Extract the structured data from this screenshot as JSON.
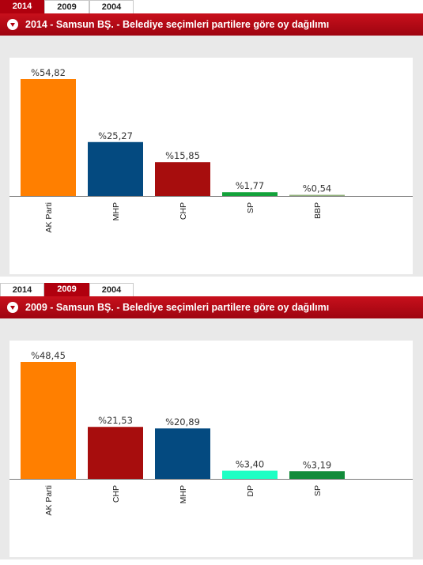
{
  "panels": [
    {
      "tabs": [
        {
          "label": "2014",
          "active": true
        },
        {
          "label": "2009",
          "active": false
        },
        {
          "label": "2004",
          "active": false
        }
      ],
      "title": "2014 - Samsun BŞ. - Belediye seçimleri partilere göre oy dağılımı",
      "icon": "down-arrow-circle-icon"
    },
    {
      "tabs": [
        {
          "label": "2014",
          "active": false
        },
        {
          "label": "2009",
          "active": true
        },
        {
          "label": "2004",
          "active": false
        }
      ],
      "title": "2009 - Samsun BŞ. - Belediye seçimleri partilere göre oy dağılımı",
      "icon": "down-arrow-circle-icon"
    }
  ],
  "chart_data": [
    {
      "type": "bar",
      "categories": [
        "AK Parti",
        "MHP",
        "CHP",
        "SP",
        "BBP"
      ],
      "values": [
        54.82,
        25.27,
        15.85,
        1.77,
        0.54
      ],
      "value_labels": [
        "%54,82",
        "%25,27",
        "%15,85",
        "%1,77",
        "%0,54"
      ],
      "colors": [
        "#ff7f00",
        "#044a80",
        "#a70d0d",
        "#12a23a",
        "#8fb07a"
      ],
      "title": "2014 - Samsun BŞ. - Belediye seçimleri partilere göre oy dağılımı",
      "xlabel": "",
      "ylabel": "",
      "ylim": [
        0,
        54.82
      ],
      "grid": false
    },
    {
      "type": "bar",
      "categories": [
        "AK Parti",
        "CHP",
        "MHP",
        "DP",
        "SP"
      ],
      "values": [
        48.45,
        21.53,
        20.89,
        3.4,
        3.19
      ],
      "value_labels": [
        "%48,45",
        "%21,53",
        "%20,89",
        "%3,40",
        "%3,19"
      ],
      "colors": [
        "#ff7f00",
        "#a70d0d",
        "#044a80",
        "#1effc4",
        "#128b3a"
      ],
      "title": "2009 - Samsun BŞ. - Belediye seçimleri partilere göre oy dağılımı",
      "xlabel": "",
      "ylabel": "",
      "ylim": [
        0,
        48.45
      ],
      "grid": false
    }
  ]
}
